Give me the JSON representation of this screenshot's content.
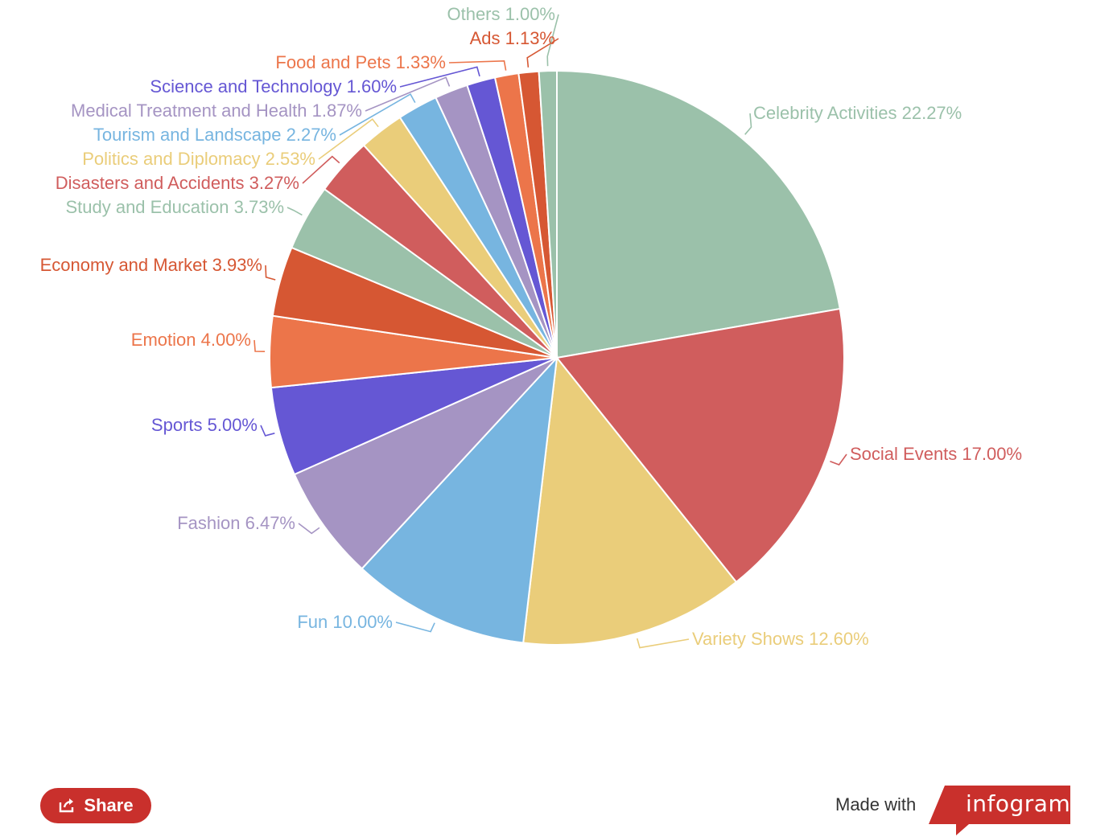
{
  "chart_data": {
    "type": "pie",
    "slices": [
      {
        "label": "Celebrity Activities",
        "value": 22.27,
        "text": "Celebrity Activities 22.27%",
        "color": "#9bc1aa"
      },
      {
        "label": "Social Events",
        "value": 17.0,
        "text": "Social Events 17.00%",
        "color": "#d05d5d"
      },
      {
        "label": "Variety Shows",
        "value": 12.6,
        "text": "Variety Shows 12.60%",
        "color": "#eacd7a"
      },
      {
        "label": "Fun",
        "value": 10.0,
        "text": "Fun 10.00%",
        "color": "#77b5e0"
      },
      {
        "label": "Fashion",
        "value": 6.47,
        "text": "Fashion 6.47%",
        "color": "#a594c3"
      },
      {
        "label": "Sports",
        "value": 5.0,
        "text": "Sports 5.00%",
        "color": "#6557d4"
      },
      {
        "label": "Emotion",
        "value": 4.0,
        "text": "Emotion 4.00%",
        "color": "#ec754a"
      },
      {
        "label": "Economy and Market",
        "value": 3.93,
        "text": "Economy and Market 3.93%",
        "color": "#d65733"
      },
      {
        "label": "Study and Education",
        "value": 3.73,
        "text": "Study and Education 3.73%",
        "color": "#9bc1aa"
      },
      {
        "label": "Disasters and Accidents",
        "value": 3.27,
        "text": "Disasters and Accidents 3.27%",
        "color": "#d05d5d"
      },
      {
        "label": "Politics and Diplomacy",
        "value": 2.53,
        "text": "Politics and Diplomacy 2.53%",
        "color": "#eacd7a"
      },
      {
        "label": "Tourism and Landscape",
        "value": 2.27,
        "text": "Tourism and Landscape 2.27%",
        "color": "#77b5e0"
      },
      {
        "label": "Medical Treatment and Health",
        "value": 1.87,
        "text": "Medical Treatment and Health 1.87%",
        "color": "#a594c3"
      },
      {
        "label": "Science and Technology",
        "value": 1.6,
        "text": "Science and Technology 1.60%",
        "color": "#6557d4"
      },
      {
        "label": "Food and Pets",
        "value": 1.33,
        "text": "Food and Pets 1.33%",
        "color": "#ec754a"
      },
      {
        "label": "Ads",
        "value": 1.13,
        "text": "Ads 1.13%",
        "color": "#d65733"
      },
      {
        "label": "Others",
        "value": 1.0,
        "text": "Others 1.00%",
        "color": "#9bc1aa"
      }
    ]
  },
  "footer": {
    "share_label": "Share",
    "made_with": "Made with",
    "brand": "infogram",
    "share_color": "#c9302c"
  }
}
